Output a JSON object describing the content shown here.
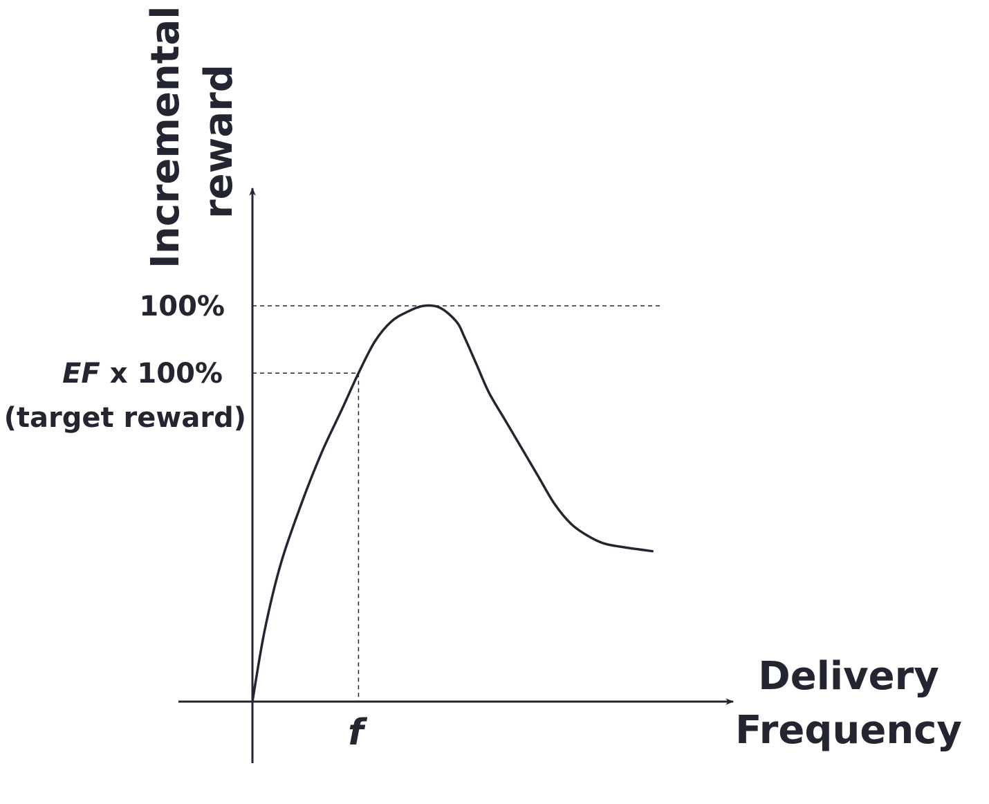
{
  "chart_data": {
    "type": "line",
    "title": "",
    "xlabel_lines": [
      "Delivery",
      "Frequency"
    ],
    "ylabel_lines": [
      "Incremental",
      "reward"
    ],
    "x_tick_label": "f",
    "y_ticks": [
      {
        "value": 100,
        "label": "100%"
      },
      {
        "value": 83,
        "label_italic": "EF",
        "label_rest": " x 100%",
        "sublabel": "(target reward)"
      }
    ],
    "ylim": [
      0,
      100
    ],
    "xlim": [
      0,
      10
    ],
    "f_x": 2.6,
    "series": [
      {
        "x": [
          0,
          0.3,
          0.7,
          1.2,
          1.7,
          2.2,
          2.6,
          3.0,
          3.4,
          3.8,
          4.2,
          4.6,
          5.0,
          5.2,
          5.5,
          5.8,
          6.2,
          6.6,
          7.0,
          7.4,
          7.8,
          8.2,
          8.6,
          9.1,
          9.8
        ],
        "y": [
          0,
          18,
          35,
          50,
          63,
          74,
          83,
          91,
          96,
          98.5,
          100,
          99.5,
          96,
          92,
          85,
          78,
          71,
          64,
          57,
          50,
          45,
          42,
          40,
          39,
          38
        ]
      }
    ],
    "colors": {
      "ink": "#232530",
      "curve": "#232530",
      "guide": "#232530"
    }
  }
}
